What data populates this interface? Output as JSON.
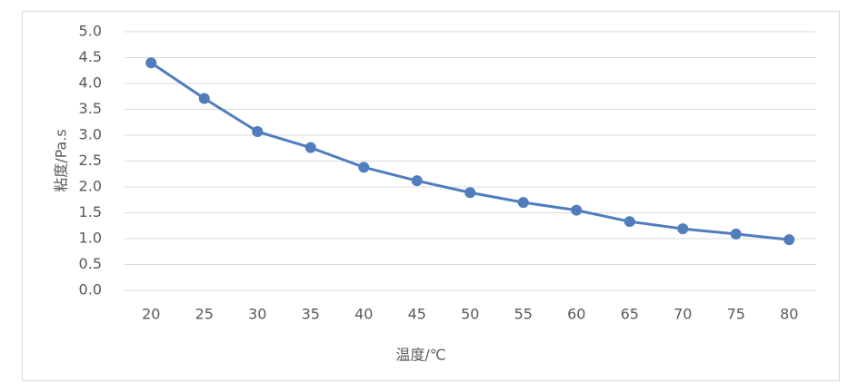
{
  "chart_data": {
    "type": "line",
    "x_label": "温度/℃",
    "y_label": "粘度/Pa.s",
    "categories": [
      "20",
      "25",
      "30",
      "35",
      "40",
      "45",
      "50",
      "55",
      "60",
      "65",
      "70",
      "75",
      "80"
    ],
    "series": [
      {
        "name": "粘度",
        "color": "#4f7dbd",
        "values": [
          4.4,
          3.71,
          3.07,
          2.76,
          2.38,
          2.12,
          1.89,
          1.7,
          1.55,
          1.33,
          1.19,
          1.09,
          0.98
        ]
      }
    ],
    "ylim": [
      0,
      5
    ],
    "yticks": [
      {
        "value": 0,
        "label": "0.0"
      },
      0.5,
      {
        "value": 1,
        "label": "1.0"
      },
      1.5,
      {
        "value": 2,
        "label": "2.0"
      },
      2.5,
      {
        "value": 3,
        "label": "3.0"
      },
      3.5,
      {
        "value": 4,
        "label": "4.0"
      },
      4.5,
      {
        "value": 5,
        "label": "5.0"
      }
    ],
    "grid": true
  }
}
